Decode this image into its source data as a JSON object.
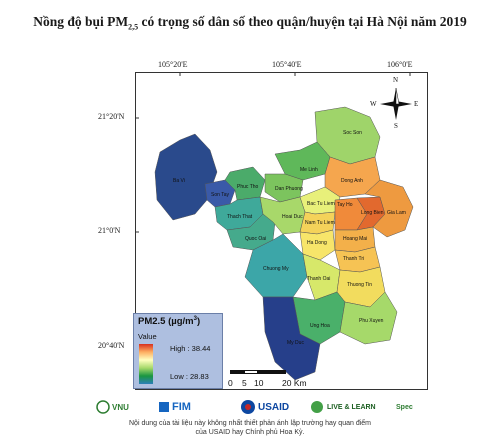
{
  "title_main": "Nồng độ bụi PM",
  "title_sub": "2,5",
  "title_rest": " có trọng số dân số theo quận/huyện tại Hà Nội năm 2019",
  "grid": {
    "lon_labels": [
      "105°20'E",
      "105°40'E",
      "106°0'E"
    ],
    "lat_labels": [
      "21°20'N",
      "21°0'N",
      "20°40'N"
    ]
  },
  "legend": {
    "title": "PM2.5 (µg/m",
    "title_sup": "3",
    "title_end": ")",
    "value_label": "Value",
    "high_label": "High : 38.44",
    "low_label": "Low : 28.83",
    "high": 38.44,
    "low": 28.83,
    "colors": [
      "#d7301f",
      "#fdae61",
      "#ffffbf",
      "#a6d96a",
      "#1a9641",
      "#2c7fb8"
    ]
  },
  "scale": {
    "labels": [
      "0",
      "5",
      "10",
      "20 Km"
    ]
  },
  "compass": {
    "n": "N",
    "s": "S",
    "e": "E",
    "w": "W"
  },
  "districts": [
    {
      "name": "Soc Son",
      "color": "#9fd46a"
    },
    {
      "name": "Me Linh",
      "color": "#5fb85a"
    },
    {
      "name": "Dong Anh",
      "color": "#f5a64e"
    },
    {
      "name": "Ba Vi",
      "color": "#2a4a8c"
    },
    {
      "name": "Son Tay",
      "color": "#3a5aa8"
    },
    {
      "name": "Phuc Tho",
      "color": "#4bab6a"
    },
    {
      "name": "Dan Phuong",
      "color": "#7cc45e"
    },
    {
      "name": "Thach That",
      "color": "#3fa99a"
    },
    {
      "name": "Quoc Oai",
      "color": "#45aa8c"
    },
    {
      "name": "Hoai Duc",
      "color": "#a8d86a"
    },
    {
      "name": "Bac Tu Liem",
      "color": "#e8f07a"
    },
    {
      "name": "Nam Tu Liem",
      "color": "#f4d25a"
    },
    {
      "name": "Tay Ho",
      "color": "#f08a3a"
    },
    {
      "name": "Long Bien",
      "color": "#e2692e"
    },
    {
      "name": "Gia Lam",
      "color": "#ee9a40"
    },
    {
      "name": "Ha Dong",
      "color": "#f7e56a"
    },
    {
      "name": "Hoang Mai",
      "color": "#f3b04a"
    },
    {
      "name": "Thanh Tri",
      "color": "#f6c354"
    },
    {
      "name": "Chuong My",
      "color": "#3ca6a8"
    },
    {
      "name": "Thanh Oai",
      "color": "#d7e86a"
    },
    {
      "name": "Thuong Tin",
      "color": "#f2dc5e"
    },
    {
      "name": "Ung Hoa",
      "color": "#4ab06a"
    },
    {
      "name": "Phu Xuyen",
      "color": "#a6d96a"
    },
    {
      "name": "My Duc",
      "color": "#263f8a"
    }
  ],
  "logos": {
    "vnu": "VNU",
    "fimo": "FIM",
    "usaid": "USAID",
    "livelearn": "LIVE & LEARN",
    "spec": "Spec"
  },
  "footer_line1": "Nội dung của tài liệu này không nhất thiết phản ánh lập trường hay quan điểm",
  "footer_line2": "của USAID hay Chính phủ Hoa Kỳ."
}
